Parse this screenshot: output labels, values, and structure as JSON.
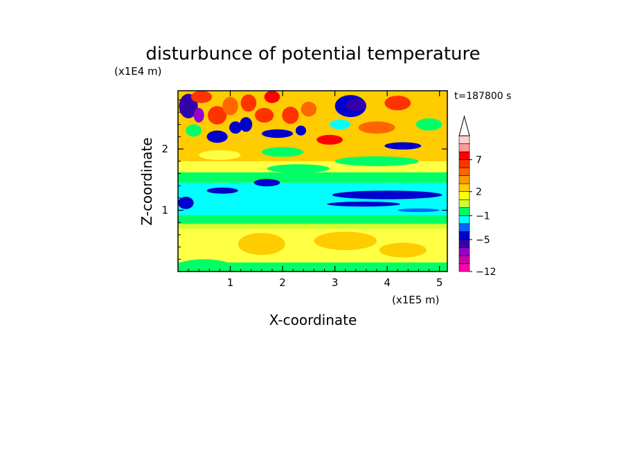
{
  "chart_data": {
    "type": "heatmap",
    "title": "disturbunce of potential temperature",
    "xlabel": "X-coordinate",
    "ylabel": "Z-coordinate",
    "x_unit": "(x1E5 m)",
    "y_unit": "(x1E4 m)",
    "time_label": "t=187800 s",
    "xlim": [
      0,
      5.15
    ],
    "ylim": [
      0,
      2.95
    ],
    "x_ticks": [
      {
        "value": 1,
        "label": "1"
      },
      {
        "value": 2,
        "label": "2"
      },
      {
        "value": 3,
        "label": "3"
      },
      {
        "value": 4,
        "label": "4"
      },
      {
        "value": 5,
        "label": "5"
      }
    ],
    "y_ticks": [
      {
        "value": 1,
        "label": "1"
      },
      {
        "value": 2,
        "label": "2"
      }
    ],
    "colorbar": {
      "levels": [
        {
          "color": "#ff00aa"
        },
        {
          "color": "#cc00aa"
        },
        {
          "color": "#9900cc"
        },
        {
          "color": "#3300aa"
        },
        {
          "color": "#0000cc"
        },
        {
          "color": "#0066ff"
        },
        {
          "color": "#00ffff"
        },
        {
          "color": "#00ff66"
        },
        {
          "color": "#ccff33"
        },
        {
          "color": "#ffff00"
        },
        {
          "color": "#ffcc00"
        },
        {
          "color": "#ff9900"
        },
        {
          "color": "#ff6600"
        },
        {
          "color": "#ff3300"
        },
        {
          "color": "#ff0000"
        },
        {
          "color": "#ff9999"
        },
        {
          "color": "#ffcccc"
        }
      ],
      "labels": [
        {
          "text": "7",
          "level_index": 14
        },
        {
          "text": "2",
          "level_index": 10
        },
        {
          "text": "−1",
          "level_index": 7
        },
        {
          "text": "−5",
          "level_index": 4
        },
        {
          "text": "−12",
          "level_index": 0
        }
      ],
      "arrow_color": "#ffffff"
    },
    "field": {
      "background_color": "#ffff44",
      "bands": [
        {
          "z": [
            0.0,
            0.15
          ],
          "color": "#00ff66"
        },
        {
          "z": [
            0.15,
            0.7
          ],
          "color": "#ffff44"
        },
        {
          "z": [
            0.7,
            0.78
          ],
          "color": "#ccff33"
        },
        {
          "z": [
            0.78,
            0.92
          ],
          "color": "#00ff66"
        },
        {
          "z": [
            0.92,
            1.45
          ],
          "color": "#00ffff"
        },
        {
          "z": [
            1.45,
            1.62
          ],
          "color": "#00ff66"
        },
        {
          "z": [
            1.62,
            1.8
          ],
          "color": "#ffff44"
        },
        {
          "z": [
            1.8,
            2.95
          ],
          "color": "#ffcc00"
        }
      ],
      "blobs": [
        {
          "x": 0.15,
          "z": 1.12,
          "rx": 0.15,
          "rz": 0.1,
          "color": "#0000cc"
        },
        {
          "x": 0.85,
          "z": 1.32,
          "rx": 0.3,
          "rz": 0.05,
          "color": "#0000cc"
        },
        {
          "x": 4.0,
          "z": 1.25,
          "rx": 1.05,
          "rz": 0.07,
          "color": "#0000cc"
        },
        {
          "x": 3.55,
          "z": 1.1,
          "rx": 0.7,
          "rz": 0.04,
          "color": "#0000cc"
        },
        {
          "x": 1.7,
          "z": 1.45,
          "rx": 0.25,
          "rz": 0.06,
          "color": "#0000cc"
        },
        {
          "x": 4.6,
          "z": 1.0,
          "rx": 0.4,
          "rz": 0.03,
          "color": "#0066ff"
        },
        {
          "x": 2.3,
          "z": 1.68,
          "rx": 0.6,
          "rz": 0.07,
          "color": "#00ff66"
        },
        {
          "x": 3.8,
          "z": 1.8,
          "rx": 0.8,
          "rz": 0.08,
          "color": "#00ff66"
        },
        {
          "x": 1.6,
          "z": 0.45,
          "rx": 0.45,
          "rz": 0.18,
          "color": "#ffcc00"
        },
        {
          "x": 3.2,
          "z": 0.5,
          "rx": 0.6,
          "rz": 0.15,
          "color": "#ffcc00"
        },
        {
          "x": 4.3,
          "z": 0.35,
          "rx": 0.45,
          "rz": 0.12,
          "color": "#ffcc00"
        },
        {
          "x": 0.5,
          "z": 0.1,
          "rx": 0.5,
          "rz": 0.1,
          "color": "#00ff66"
        },
        {
          "x": 0.2,
          "z": 2.7,
          "rx": 0.18,
          "rz": 0.2,
          "color": "#3300aa"
        },
        {
          "x": 0.4,
          "z": 2.55,
          "rx": 0.1,
          "rz": 0.12,
          "color": "#9900cc"
        },
        {
          "x": 0.45,
          "z": 2.85,
          "rx": 0.2,
          "rz": 0.1,
          "color": "#ff3300"
        },
        {
          "x": 0.75,
          "z": 2.55,
          "rx": 0.18,
          "rz": 0.15,
          "color": "#ff3300"
        },
        {
          "x": 0.75,
          "z": 2.2,
          "rx": 0.2,
          "rz": 0.1,
          "color": "#0000cc"
        },
        {
          "x": 0.3,
          "z": 2.3,
          "rx": 0.15,
          "rz": 0.1,
          "color": "#00ff66"
        },
        {
          "x": 1.1,
          "z": 2.35,
          "rx": 0.12,
          "rz": 0.1,
          "color": "#0000cc"
        },
        {
          "x": 1.0,
          "z": 2.7,
          "rx": 0.15,
          "rz": 0.15,
          "color": "#ff6600"
        },
        {
          "x": 1.35,
          "z": 2.75,
          "rx": 0.15,
          "rz": 0.14,
          "color": "#ff3300"
        },
        {
          "x": 1.3,
          "z": 2.4,
          "rx": 0.12,
          "rz": 0.12,
          "color": "#0000cc"
        },
        {
          "x": 1.65,
          "z": 2.55,
          "rx": 0.18,
          "rz": 0.12,
          "color": "#ff3300"
        },
        {
          "x": 1.8,
          "z": 2.85,
          "rx": 0.15,
          "rz": 0.1,
          "color": "#ff0000"
        },
        {
          "x": 1.9,
          "z": 2.25,
          "rx": 0.3,
          "rz": 0.07,
          "color": "#0000cc"
        },
        {
          "x": 2.15,
          "z": 2.55,
          "rx": 0.16,
          "rz": 0.14,
          "color": "#ff3300"
        },
        {
          "x": 2.35,
          "z": 2.3,
          "rx": 0.1,
          "rz": 0.08,
          "color": "#0000cc"
        },
        {
          "x": 2.5,
          "z": 2.65,
          "rx": 0.15,
          "rz": 0.12,
          "color": "#ff6600"
        },
        {
          "x": 2.9,
          "z": 2.15,
          "rx": 0.25,
          "rz": 0.08,
          "color": "#ff0000"
        },
        {
          "x": 3.3,
          "z": 2.7,
          "rx": 0.3,
          "rz": 0.18,
          "color": "#0000cc"
        },
        {
          "x": 3.4,
          "z": 2.72,
          "rx": 0.2,
          "rz": 0.1,
          "color": "#3300aa"
        },
        {
          "x": 3.1,
          "z": 2.4,
          "rx": 0.2,
          "rz": 0.08,
          "color": "#00ffff"
        },
        {
          "x": 3.8,
          "z": 2.35,
          "rx": 0.35,
          "rz": 0.1,
          "color": "#ff6600"
        },
        {
          "x": 4.2,
          "z": 2.75,
          "rx": 0.25,
          "rz": 0.12,
          "color": "#ff3300"
        },
        {
          "x": 4.3,
          "z": 2.05,
          "rx": 0.35,
          "rz": 0.06,
          "color": "#0000cc"
        },
        {
          "x": 4.8,
          "z": 2.4,
          "rx": 0.25,
          "rz": 0.1,
          "color": "#00ff66"
        },
        {
          "x": 2.0,
          "z": 1.95,
          "rx": 0.4,
          "rz": 0.08,
          "color": "#00ff66"
        },
        {
          "x": 0.8,
          "z": 1.9,
          "rx": 0.4,
          "rz": 0.08,
          "color": "#ffff44"
        }
      ]
    }
  }
}
